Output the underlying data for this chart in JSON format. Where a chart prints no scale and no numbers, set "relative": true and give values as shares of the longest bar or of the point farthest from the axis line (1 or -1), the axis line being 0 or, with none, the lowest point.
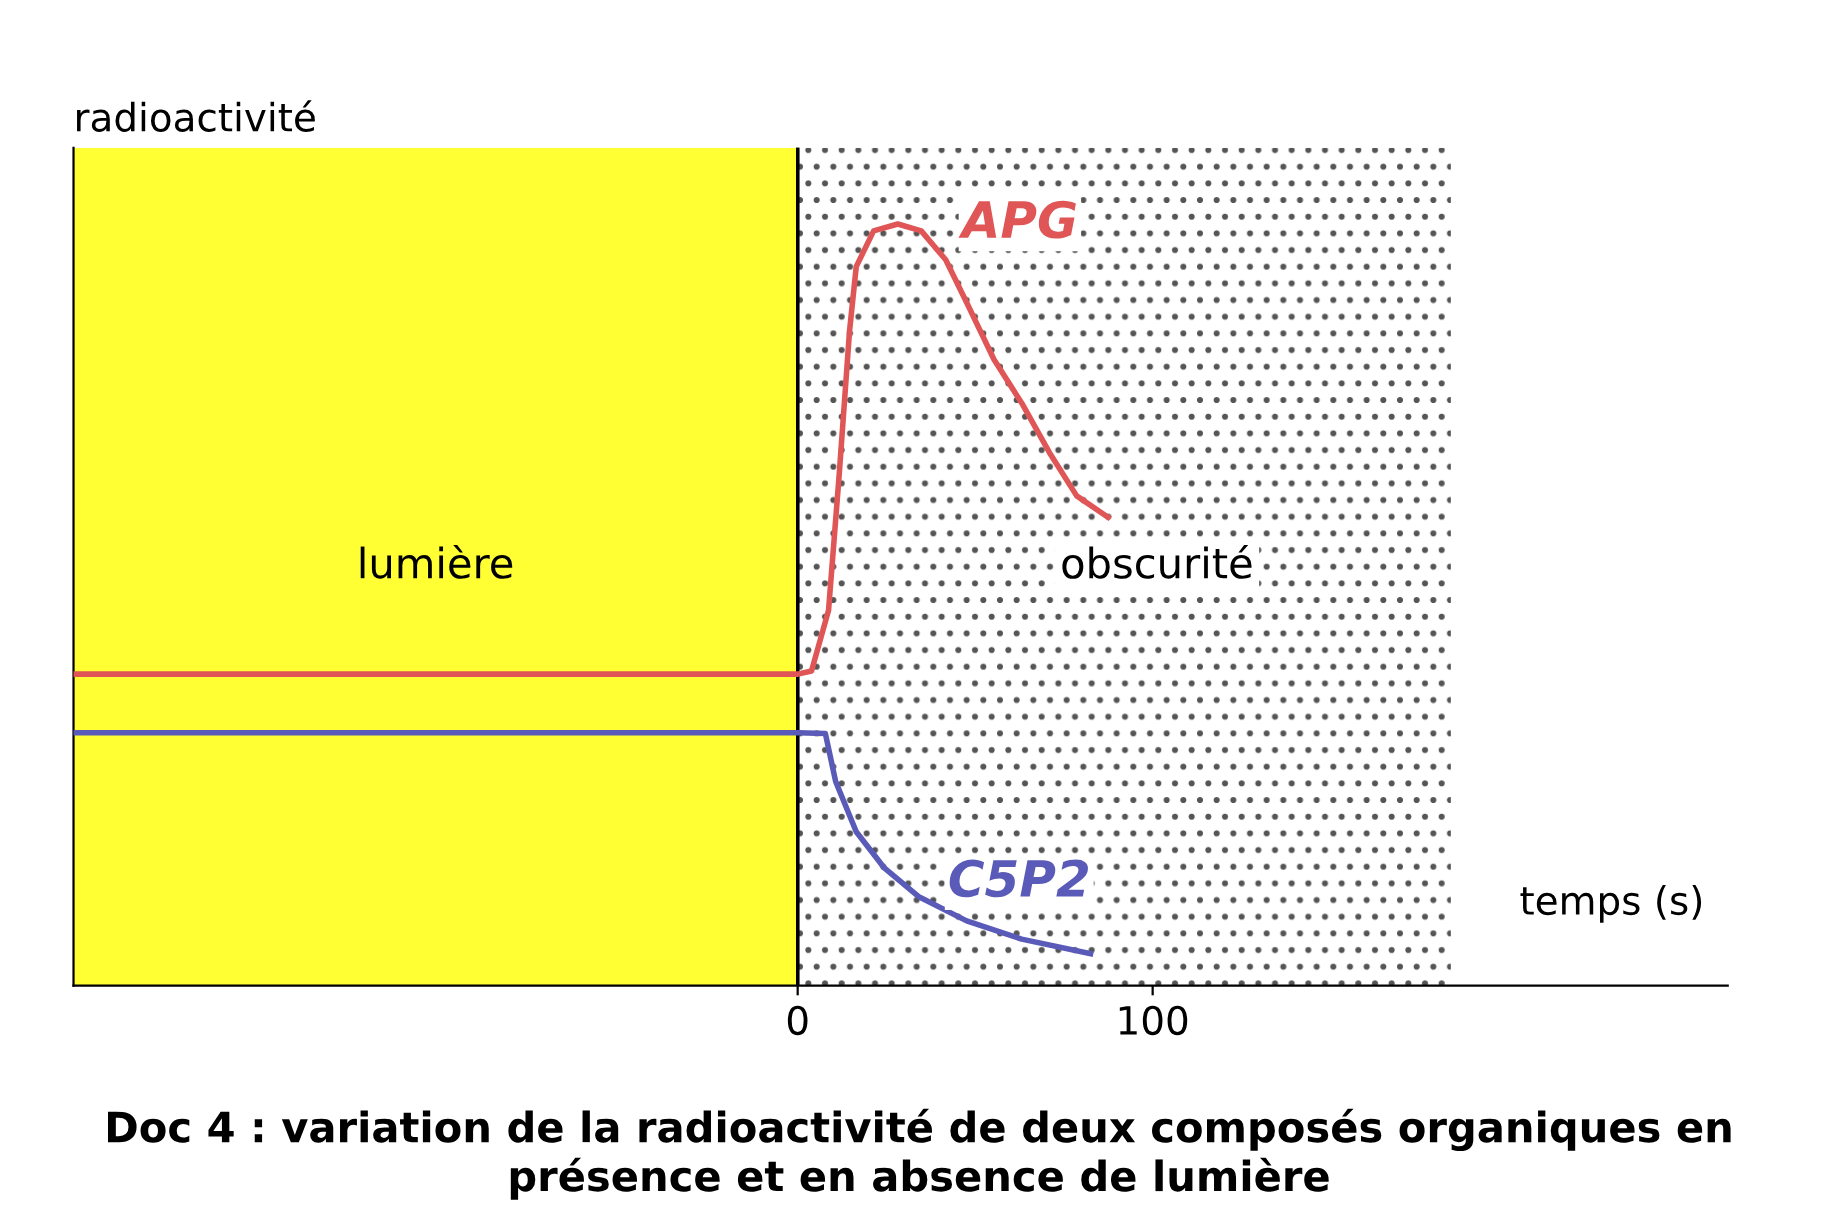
{
  "chart_data": {
    "type": "line",
    "relative": true,
    "title": "Doc 4 : variation de la radioactivité de deux composés organiques en présence et en absence de lumière",
    "xlabel": "temps (s)",
    "ylabel": "radioactivité",
    "xlim": [
      -204,
      262
    ],
    "xticks": [
      0,
      100
    ],
    "series": [
      {
        "name": "APG",
        "color": "#e05555",
        "x": [
          -204,
          0,
          3.9,
          8.7,
          11.7,
          14.6,
          16.5,
          21.4,
          28.2,
          34.8,
          41.7,
          47.6,
          55.3,
          63.1,
          70.9,
          78.6,
          87.4
        ],
        "values": [
          0.409,
          0.409,
          0.413,
          0.493,
          0.671,
          0.859,
          0.944,
          0.991,
          1.0,
          0.991,
          0.953,
          0.897,
          0.822,
          0.765,
          0.7,
          0.643,
          0.615
        ]
      },
      {
        "name": "C5P2",
        "color": "#5a5ab8",
        "x": [
          -204,
          0,
          7.8,
          10.7,
          16.5,
          24.3,
          34,
          47.6,
          63.1,
          82.5
        ],
        "values": [
          0.332,
          0.332,
          0.331,
          0.268,
          0.202,
          0.155,
          0.117,
          0.085,
          0.061,
          0.042
        ]
      }
    ],
    "bands": [
      {
        "axis": "x",
        "from": -204,
        "to": 0,
        "label": "lumière",
        "color": "#ffff33"
      },
      {
        "axis": "x",
        "from": 0,
        "to": 184,
        "label": "obscurité",
        "color": "#555555"
      }
    ]
  }
}
